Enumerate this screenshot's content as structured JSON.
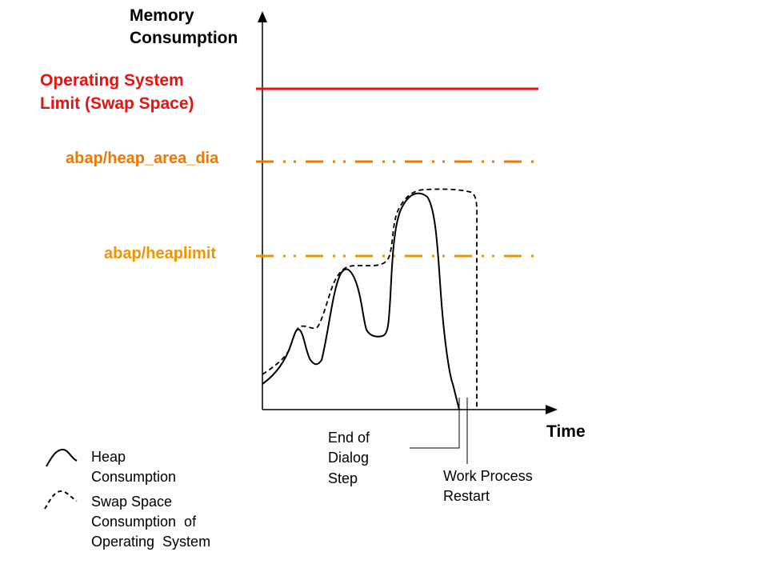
{
  "axes": {
    "y_title_line1": "Memory",
    "y_title_line2": "Consumption",
    "x_title": "Time"
  },
  "limits": {
    "os_line1": "Operating System",
    "os_line2": "Limit (Swap Space)",
    "heap_area_dia": "abap/heap_area_dia",
    "heaplimit": "abap/heaplimit"
  },
  "annotations": {
    "end_dialog_line1": "End of",
    "end_dialog_line2": "Dialog",
    "end_dialog_line3": "Step",
    "restart_line1": "Work Process",
    "restart_line2": "Restart"
  },
  "legend": {
    "heap_line1": "Heap",
    "heap_line2": "Consumption",
    "swap_line1": "Swap Space",
    "swap_line2": "Consumption  of",
    "swap_line3": "Operating  System"
  },
  "colors": {
    "os_limit": "#e8120e",
    "heap_area_dia": "#f07800",
    "heaplimit": "#f29400",
    "curves": "#000000"
  }
}
